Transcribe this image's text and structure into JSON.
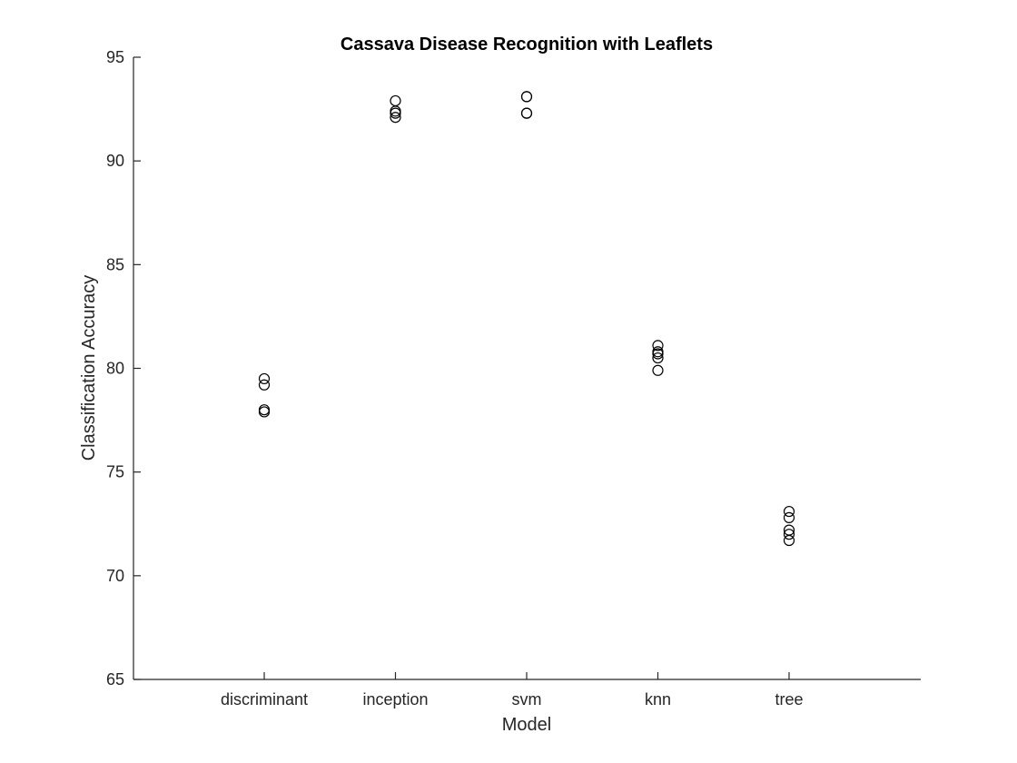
{
  "chart_data": {
    "type": "scatter",
    "title": "Cassava Disease Recognition with Leaflets",
    "xlabel": "Model",
    "ylabel": "Classification Accuracy",
    "categories": [
      "discriminant",
      "inception",
      "svm",
      "knn",
      "tree"
    ],
    "ylim": [
      65,
      95
    ],
    "yticks": [
      65,
      70,
      75,
      80,
      85,
      90,
      95
    ],
    "grid": false,
    "legend": "none",
    "marker": "open-circle",
    "series": [
      {
        "points": [
          {
            "x": "discriminant",
            "y": 79.5
          },
          {
            "x": "discriminant",
            "y": 79.2
          },
          {
            "x": "discriminant",
            "y": 78.0
          },
          {
            "x": "discriminant",
            "y": 77.9
          },
          {
            "x": "inception",
            "y": 92.9
          },
          {
            "x": "inception",
            "y": 92.4
          },
          {
            "x": "inception",
            "y": 92.3
          },
          {
            "x": "inception",
            "y": 92.1
          },
          {
            "x": "svm",
            "y": 93.1
          },
          {
            "x": "svm",
            "y": 93.1
          },
          {
            "x": "svm",
            "y": 92.3
          },
          {
            "x": "svm",
            "y": 92.3
          },
          {
            "x": "knn",
            "y": 81.1
          },
          {
            "x": "knn",
            "y": 80.8
          },
          {
            "x": "knn",
            "y": 80.7
          },
          {
            "x": "knn",
            "y": 80.5
          },
          {
            "x": "knn",
            "y": 79.9
          },
          {
            "x": "tree",
            "y": 73.1
          },
          {
            "x": "tree",
            "y": 72.8
          },
          {
            "x": "tree",
            "y": 72.2
          },
          {
            "x": "tree",
            "y": 72.0
          },
          {
            "x": "tree",
            "y": 71.7
          }
        ]
      }
    ]
  }
}
